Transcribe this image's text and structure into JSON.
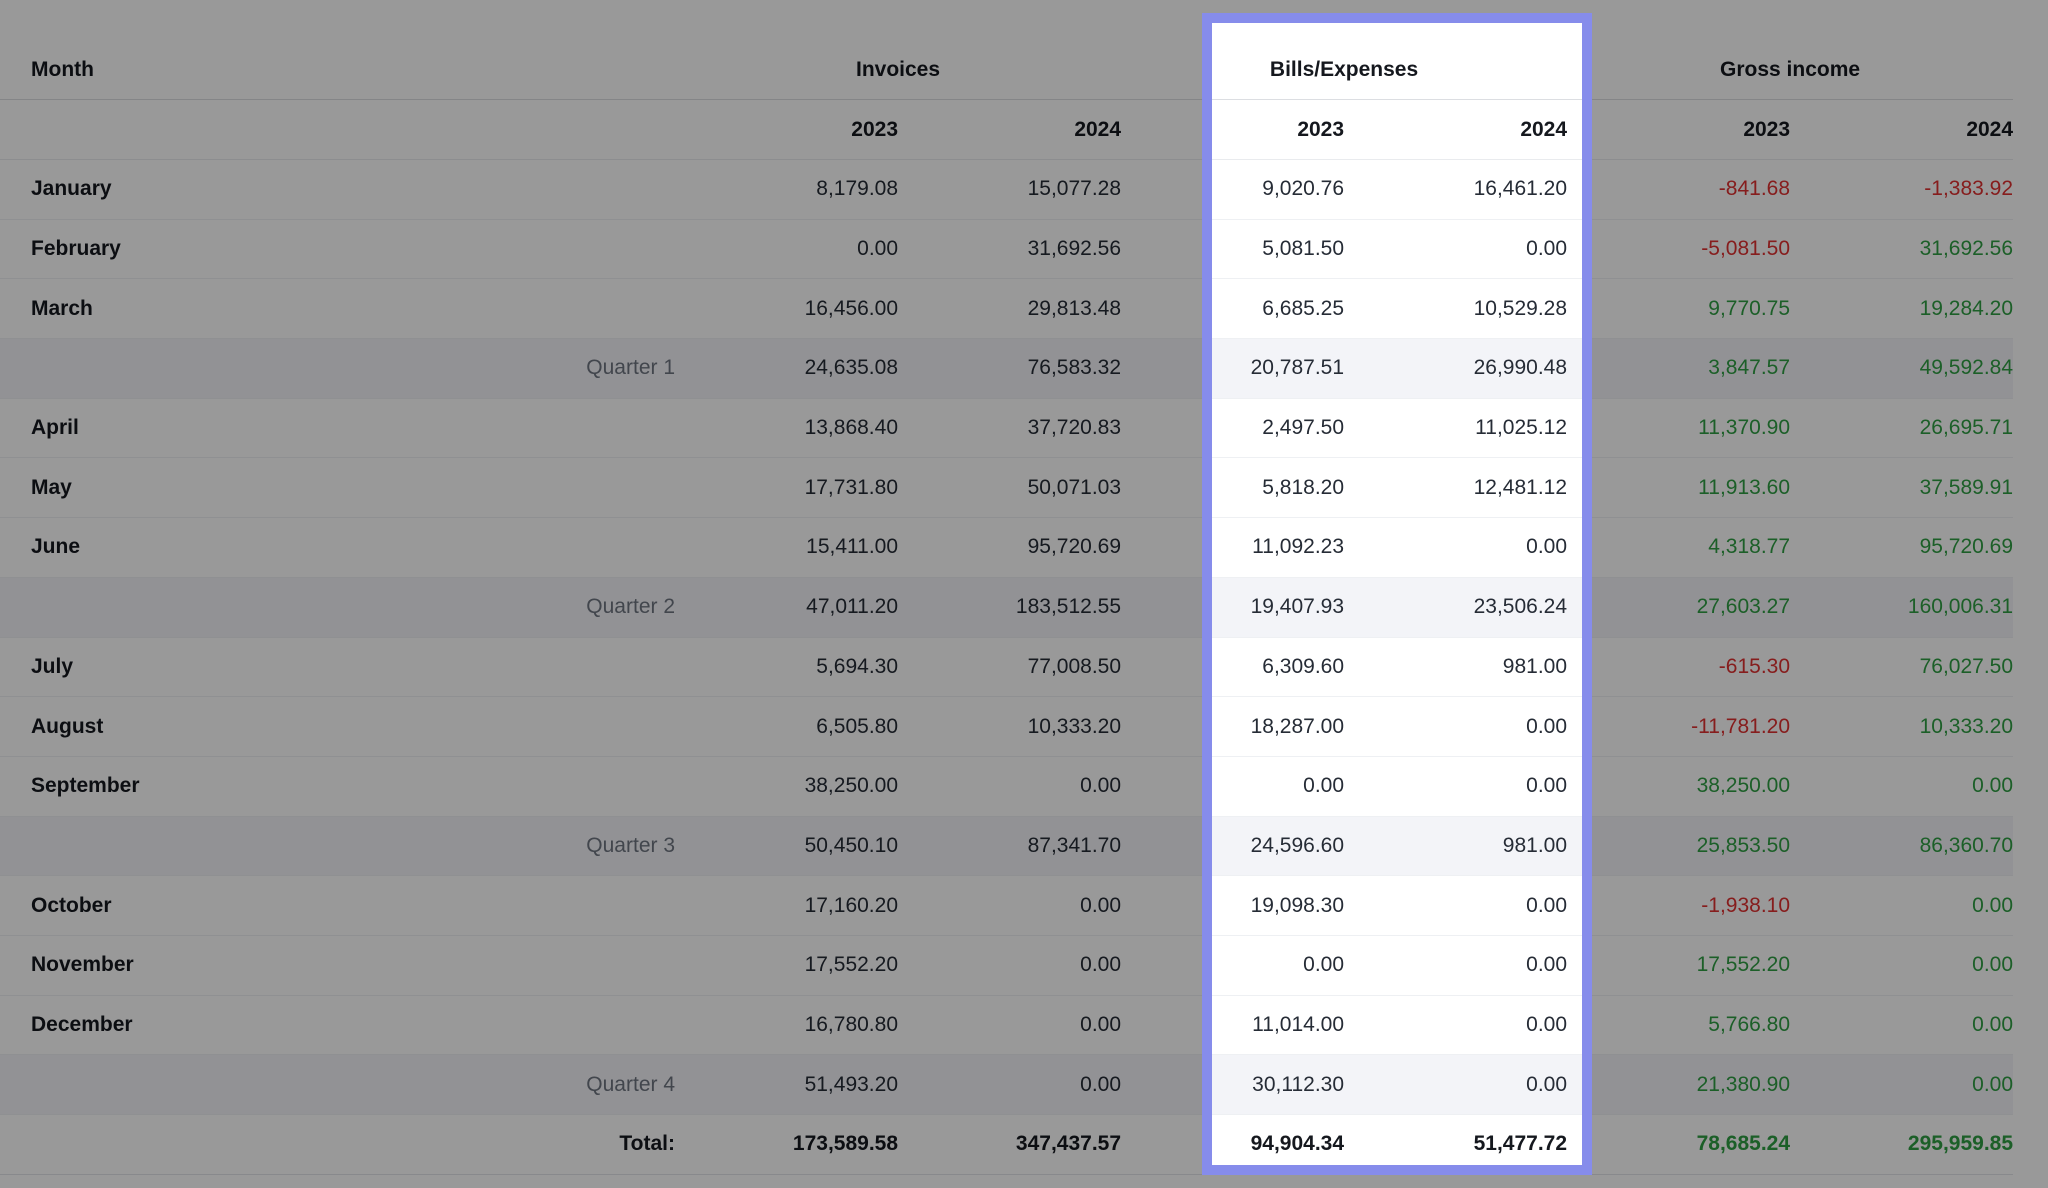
{
  "colors": {
    "positive": "#2f9e44",
    "negative": "#e03131",
    "highlight_border": "#868ceb",
    "dim_overlay": "rgba(0,0,0,0.40)",
    "quarter_row_bg": "#f3f4f8"
  },
  "highlight": {
    "target_group": "Bills/Expenses"
  },
  "table": {
    "headers": {
      "month": "Month",
      "groups": [
        {
          "label": "Invoices"
        },
        {
          "label": "Bills/Expenses"
        },
        {
          "label": "Gross income"
        }
      ],
      "years": [
        "2023",
        "2024"
      ]
    },
    "rows": [
      {
        "type": "month",
        "label": "January",
        "inv2023": "8,179.08",
        "inv2024": "15,077.28",
        "bill2023": "9,020.76",
        "bill2024": "16,461.20",
        "gross2023": "-841.68",
        "gross2024": "-1,383.92"
      },
      {
        "type": "month",
        "label": "February",
        "inv2023": "0.00",
        "inv2024": "31,692.56",
        "bill2023": "5,081.50",
        "bill2024": "0.00",
        "gross2023": "-5,081.50",
        "gross2024": "31,692.56"
      },
      {
        "type": "month",
        "label": "March",
        "inv2023": "16,456.00",
        "inv2024": "29,813.48",
        "bill2023": "6,685.25",
        "bill2024": "10,529.28",
        "gross2023": "9,770.75",
        "gross2024": "19,284.20"
      },
      {
        "type": "quarter",
        "label": "Quarter 1",
        "inv2023": "24,635.08",
        "inv2024": "76,583.32",
        "bill2023": "20,787.51",
        "bill2024": "26,990.48",
        "gross2023": "3,847.57",
        "gross2024": "49,592.84"
      },
      {
        "type": "month",
        "label": "April",
        "inv2023": "13,868.40",
        "inv2024": "37,720.83",
        "bill2023": "2,497.50",
        "bill2024": "11,025.12",
        "gross2023": "11,370.90",
        "gross2024": "26,695.71"
      },
      {
        "type": "month",
        "label": "May",
        "inv2023": "17,731.80",
        "inv2024": "50,071.03",
        "bill2023": "5,818.20",
        "bill2024": "12,481.12",
        "gross2023": "11,913.60",
        "gross2024": "37,589.91"
      },
      {
        "type": "month",
        "label": "June",
        "inv2023": "15,411.00",
        "inv2024": "95,720.69",
        "bill2023": "11,092.23",
        "bill2024": "0.00",
        "gross2023": "4,318.77",
        "gross2024": "95,720.69"
      },
      {
        "type": "quarter",
        "label": "Quarter 2",
        "inv2023": "47,011.20",
        "inv2024": "183,512.55",
        "bill2023": "19,407.93",
        "bill2024": "23,506.24",
        "gross2023": "27,603.27",
        "gross2024": "160,006.31"
      },
      {
        "type": "month",
        "label": "July",
        "inv2023": "5,694.30",
        "inv2024": "77,008.50",
        "bill2023": "6,309.60",
        "bill2024": "981.00",
        "gross2023": "-615.30",
        "gross2024": "76,027.50"
      },
      {
        "type": "month",
        "label": "August",
        "inv2023": "6,505.80",
        "inv2024": "10,333.20",
        "bill2023": "18,287.00",
        "bill2024": "0.00",
        "gross2023": "-11,781.20",
        "gross2024": "10,333.20"
      },
      {
        "type": "month",
        "label": "September",
        "inv2023": "38,250.00",
        "inv2024": "0.00",
        "bill2023": "0.00",
        "bill2024": "0.00",
        "gross2023": "38,250.00",
        "gross2024": "0.00"
      },
      {
        "type": "quarter",
        "label": "Quarter 3",
        "inv2023": "50,450.10",
        "inv2024": "87,341.70",
        "bill2023": "24,596.60",
        "bill2024": "981.00",
        "gross2023": "25,853.50",
        "gross2024": "86,360.70"
      },
      {
        "type": "month",
        "label": "October",
        "inv2023": "17,160.20",
        "inv2024": "0.00",
        "bill2023": "19,098.30",
        "bill2024": "0.00",
        "gross2023": "-1,938.10",
        "gross2024": "0.00"
      },
      {
        "type": "month",
        "label": "November",
        "inv2023": "17,552.20",
        "inv2024": "0.00",
        "bill2023": "0.00",
        "bill2024": "0.00",
        "gross2023": "17,552.20",
        "gross2024": "0.00"
      },
      {
        "type": "month",
        "label": "December",
        "inv2023": "16,780.80",
        "inv2024": "0.00",
        "bill2023": "11,014.00",
        "bill2024": "0.00",
        "gross2023": "5,766.80",
        "gross2024": "0.00"
      },
      {
        "type": "quarter",
        "label": "Quarter 4",
        "inv2023": "51,493.20",
        "inv2024": "0.00",
        "bill2023": "30,112.30",
        "bill2024": "0.00",
        "gross2023": "21,380.90",
        "gross2024": "0.00"
      },
      {
        "type": "total",
        "label": "Total:",
        "inv2023": "173,589.58",
        "inv2024": "347,437.57",
        "bill2023": "94,904.34",
        "bill2024": "51,477.72",
        "gross2023": "78,685.24",
        "gross2024": "295,959.85"
      }
    ]
  }
}
